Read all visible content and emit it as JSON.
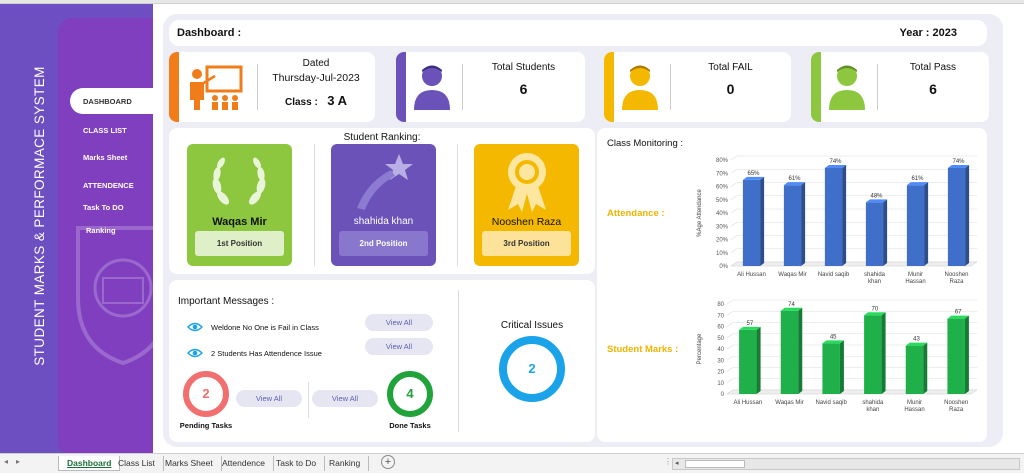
{
  "sidebar": {
    "title": "STUDENT MARKS & PERFORMACE SYSTEM",
    "items": [
      {
        "label": "DASHBOARD",
        "active": true
      },
      {
        "label": "CLASS LIST"
      },
      {
        "label": "Marks Sheet"
      },
      {
        "label": "ATTENDENCE"
      },
      {
        "label": "Task To DO"
      },
      {
        "label": "Ranking"
      }
    ],
    "watermark_icon": "school-crest-icon"
  },
  "header": {
    "title": "Dashboard :",
    "year": "Year : 2023"
  },
  "kpis": {
    "date": {
      "label": "Dated",
      "value": "Thursday-Jul-2023",
      "class_label": "Class :",
      "class_value": "3 A",
      "icon": "teacher-board-icon",
      "color": "#f07d1a"
    },
    "students": {
      "label": "Total Students",
      "value": "6",
      "icon": "user-icon",
      "color": "#6a52b8"
    },
    "fail": {
      "label": "Total FAIL",
      "value": "0",
      "icon": "user-icon",
      "color": "#f5b800"
    },
    "pass": {
      "label": "Total Pass",
      "value": "6",
      "icon": "user-icon",
      "color": "#8dc63f"
    }
  },
  "ranking": {
    "title": "Student Ranking:",
    "entries": [
      {
        "name": "Waqas Mir",
        "position": "1st Position",
        "icon": "laurel-wreath-icon",
        "color": "#8dc63f"
      },
      {
        "name": "shahida khan",
        "position": "2nd Position",
        "icon": "shooting-star-icon",
        "color": "#6a52b8"
      },
      {
        "name": "Nooshen Raza",
        "position": "3rd Position",
        "icon": "award-ribbon-icon",
        "color": "#f5b800"
      }
    ]
  },
  "messages": {
    "title": "Important Messages :",
    "items": [
      {
        "text": "Weldone No One is Fail in Class",
        "action": "View All",
        "icon": "eye-icon"
      },
      {
        "text": "2 Students Has Attendence Issue",
        "action": "View All",
        "icon": "eye-icon"
      }
    ],
    "pending": {
      "value": "2",
      "label": "Pending Tasks",
      "action": "View All",
      "color": "#f26f6f"
    },
    "done": {
      "value": "4",
      "label": "Done Tasks",
      "action": "View All",
      "color": "#1fa33a"
    },
    "critical": {
      "title": "Critical Issues",
      "value": "2",
      "color": "#1aa3e8"
    }
  },
  "monitoring": {
    "title": "Class Monitoring :",
    "attendance_label": "Attendance :",
    "marks_label": "Student Marks :"
  },
  "chart_data": [
    {
      "type": "bar",
      "categories": [
        "Ali Hussan",
        "Waqas Mir",
        "Navid saqib",
        "shahida khan",
        "Munir Hassan",
        "Nooshen Raza"
      ],
      "values": [
        65,
        61,
        74,
        48,
        61,
        74
      ],
      "value_labels": [
        "65%",
        "61%",
        "74%",
        "48%",
        "61%",
        "74%"
      ],
      "ylabel": "%Age Attendance",
      "ylim": [
        0,
        80
      ],
      "yticks": [
        "0%",
        "10%",
        "20%",
        "30%",
        "40%",
        "50%",
        "60%",
        "70%",
        "80%"
      ],
      "color": "#3f6fc8",
      "grid": true
    },
    {
      "type": "bar",
      "categories": [
        "Ali Hussan",
        "Waqas Mir",
        "Navid saqib",
        "shahida khan",
        "Munir Hassan",
        "Nooshen Raza"
      ],
      "values": [
        57,
        74,
        45,
        70,
        43,
        67
      ],
      "value_labels": [
        "57",
        "74",
        "45",
        "70",
        "43",
        "67"
      ],
      "ylabel": "Percentage",
      "ylim": [
        0,
        80
      ],
      "yticks": [
        "0",
        "10",
        "20",
        "30",
        "40",
        "50",
        "60",
        "70",
        "80"
      ],
      "color": "#1fb04a",
      "grid": true
    }
  ],
  "sheet_tabs": [
    "Dashboard",
    "Class List",
    "Marks Sheet",
    "Attendence",
    "Task to Do",
    "Ranking"
  ],
  "active_sheet": "Dashboard"
}
